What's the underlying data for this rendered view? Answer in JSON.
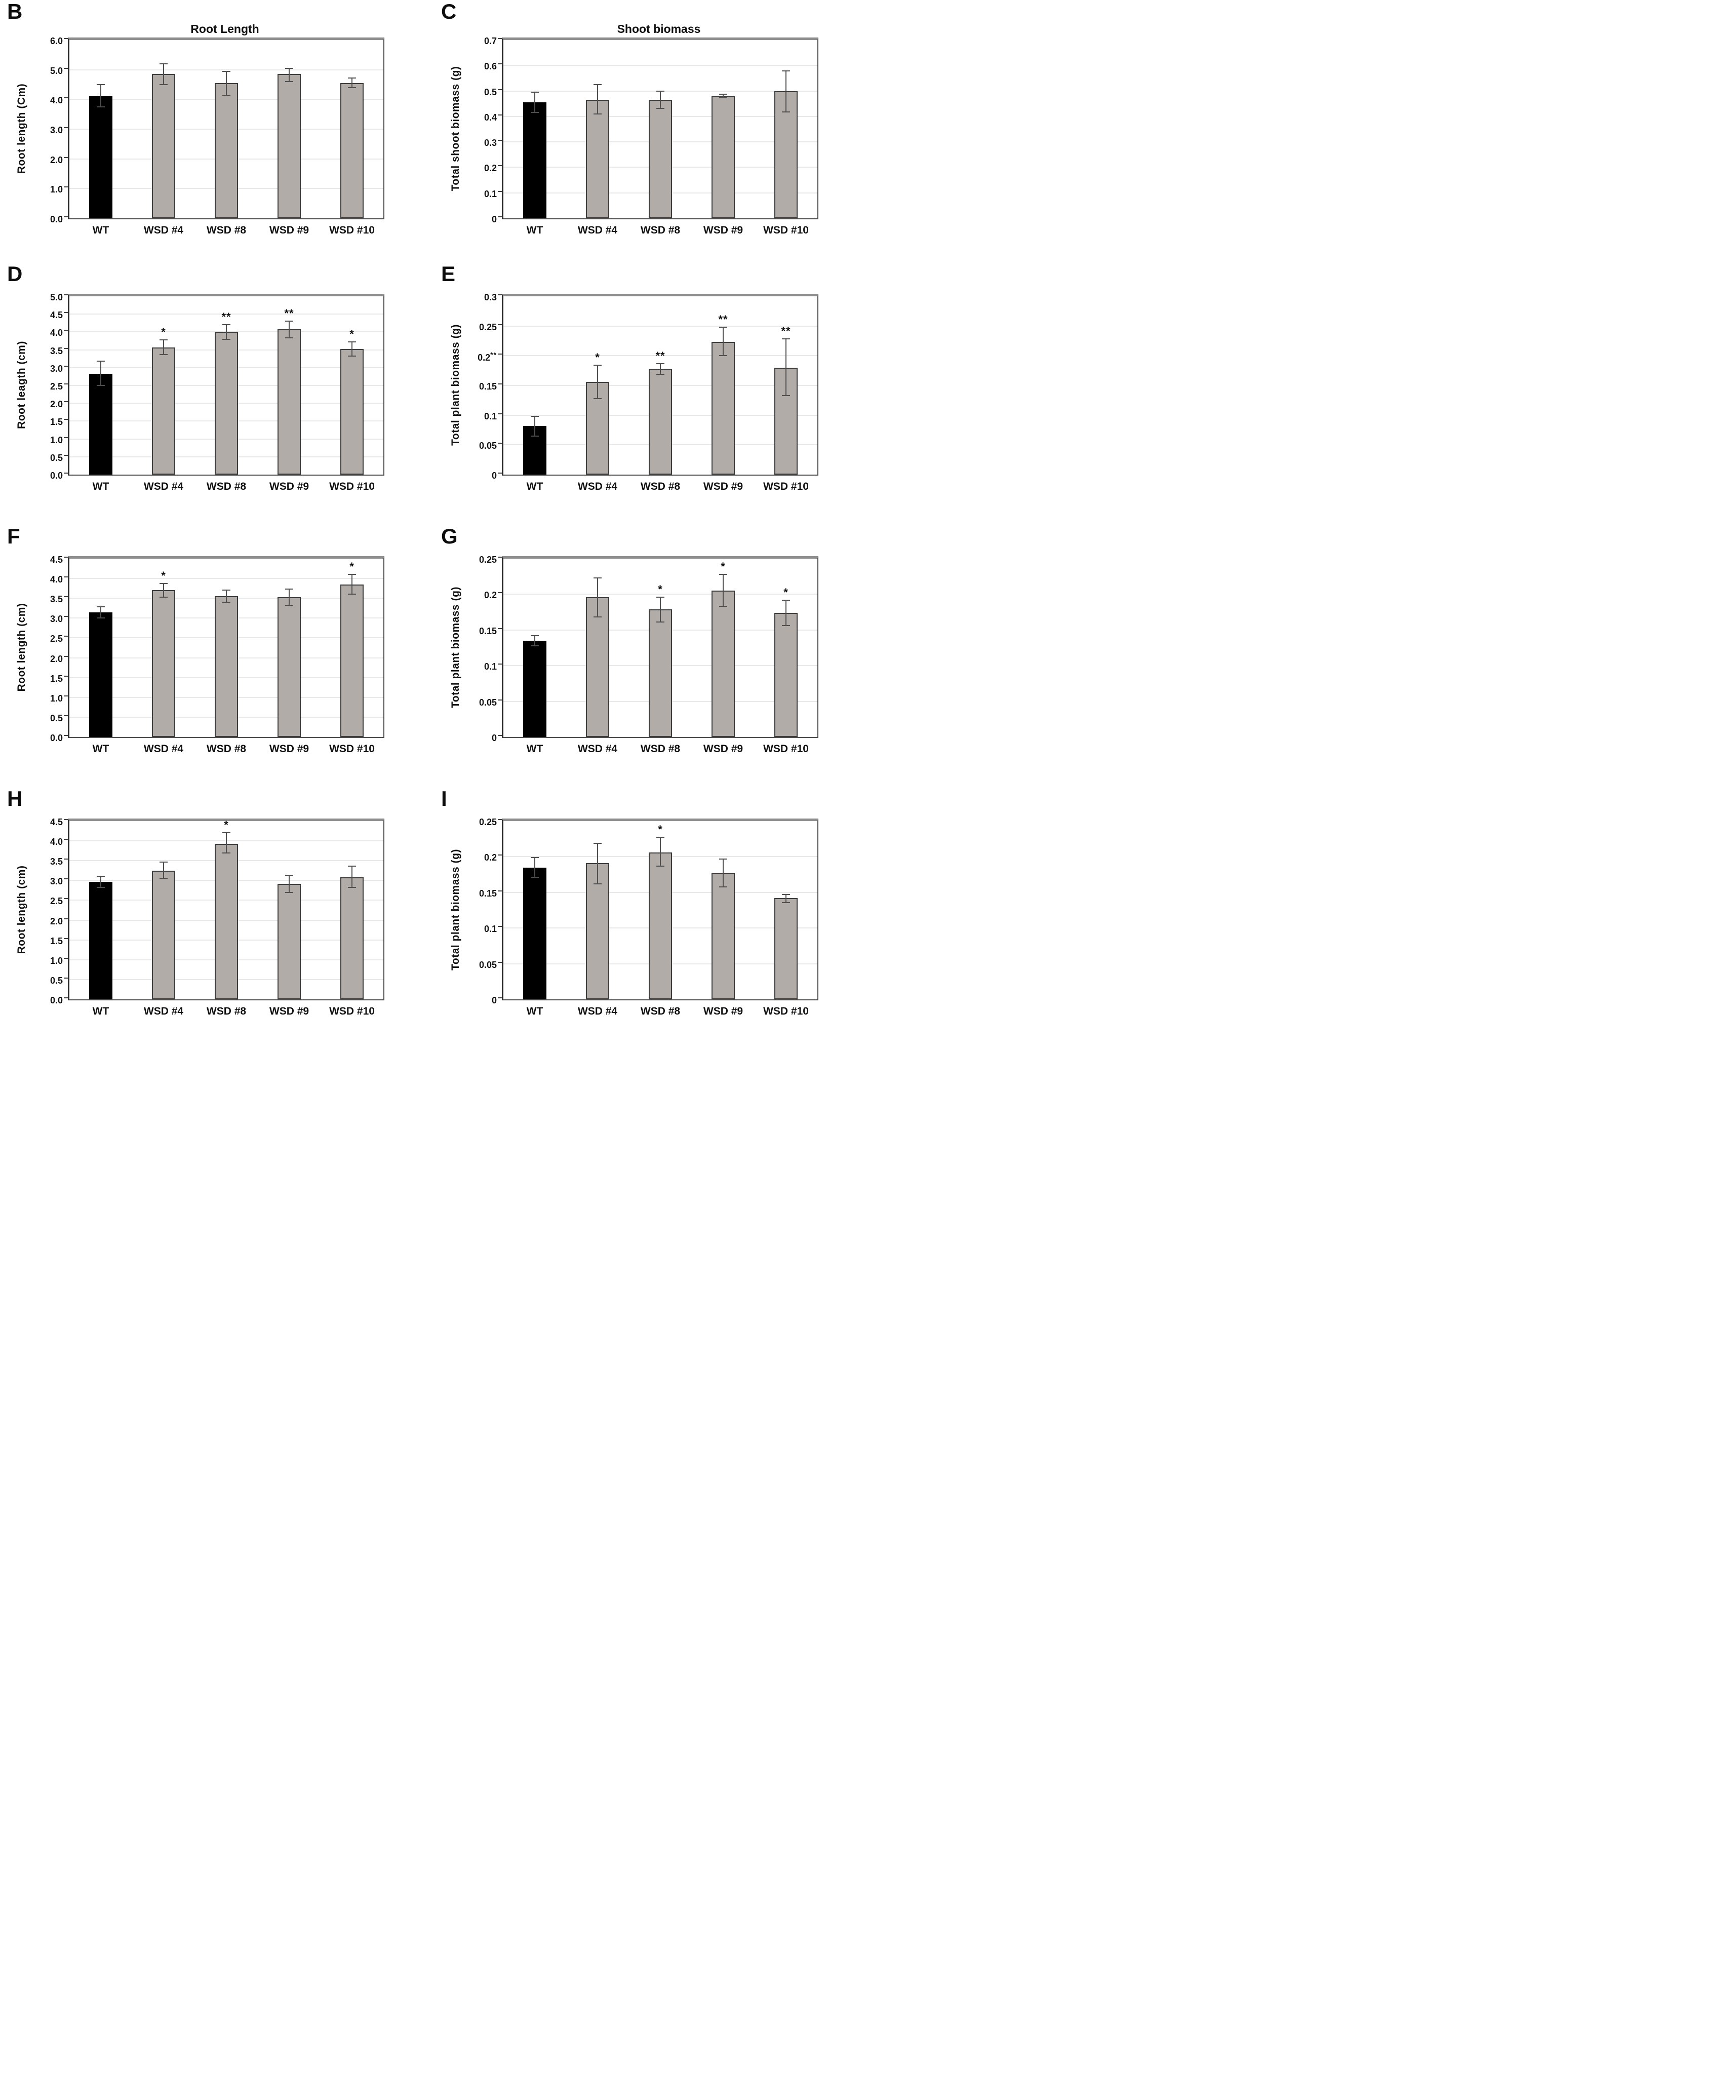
{
  "colors": {
    "wt_bar": "#000000",
    "wsd_bar": "#b2aca9",
    "bar_border": "#3c3c3c",
    "grid": "#e8e8e8",
    "error": "#4f4f4f",
    "text": "#111111"
  },
  "x_axis_categories": [
    "WT",
    "WSD #4",
    "WSD #8",
    "WSD #9",
    "WSD #10"
  ],
  "chart_data": [
    {
      "type": "bar",
      "panel": "B",
      "title": "Root Length",
      "ylabel": "Root length (Cm)",
      "ylim": [
        0,
        6
      ],
      "grid": true,
      "legend": "none",
      "yticks": [
        {
          "v": 0.0,
          "label": "0.0"
        },
        {
          "v": 1.0,
          "label": "1.0"
        },
        {
          "v": 2.0,
          "label": "2.0"
        },
        {
          "v": 3.0,
          "label": "3.0"
        },
        {
          "v": 4.0,
          "label": "4.0"
        },
        {
          "v": 5.0,
          "label": "5.0"
        },
        {
          "v": 6.0,
          "label": "6.0"
        }
      ],
      "categories": [
        "WT",
        "WSD #4",
        "WSD #8",
        "WSD #9",
        "WSD #10"
      ],
      "values": [
        4.1,
        4.85,
        4.55,
        4.85,
        4.55
      ],
      "error_low": [
        3.75,
        4.5,
        4.12,
        4.6,
        4.4
      ],
      "error_high": [
        4.5,
        5.2,
        4.95,
        5.05,
        4.72
      ],
      "significance": [
        "",
        "",
        "",
        "",
        ""
      ]
    },
    {
      "type": "bar",
      "panel": "C",
      "title": "Shoot biomass",
      "ylabel": "Total shoot biomass (g)",
      "ylim": [
        0,
        0.7
      ],
      "grid": true,
      "legend": "none",
      "yticks": [
        {
          "v": 0.0,
          "label": "0"
        },
        {
          "v": 0.1,
          "label": "0.1"
        },
        {
          "v": 0.2,
          "label": "0.2"
        },
        {
          "v": 0.3,
          "label": "0.3"
        },
        {
          "v": 0.4,
          "label": "0.4"
        },
        {
          "v": 0.5,
          "label": "0.5"
        },
        {
          "v": 0.6,
          "label": "0.6"
        },
        {
          "v": 0.7,
          "label": "0.7"
        }
      ],
      "categories": [
        "WT",
        "WSD #4",
        "WSD #8",
        "WSD #9",
        "WSD #10"
      ],
      "values": [
        0.455,
        0.465,
        0.465,
        0.48,
        0.5
      ],
      "error_low": [
        0.415,
        0.41,
        0.432,
        0.473,
        0.418
      ],
      "error_high": [
        0.495,
        0.525,
        0.5,
        0.487,
        0.578
      ],
      "significance": [
        "",
        "",
        "",
        "",
        ""
      ]
    },
    {
      "type": "bar",
      "panel": "D",
      "title": "",
      "ylabel": "Root leagth (cm)",
      "ylim": [
        0,
        5
      ],
      "grid": true,
      "legend": "none",
      "yticks": [
        {
          "v": 0.0,
          "label": "0.0"
        },
        {
          "v": 0.5,
          "label": "0.5"
        },
        {
          "v": 1.0,
          "label": "1.0"
        },
        {
          "v": 1.5,
          "label": "1.5"
        },
        {
          "v": 2.0,
          "label": "2.0"
        },
        {
          "v": 2.5,
          "label": "2.5"
        },
        {
          "v": 3.0,
          "label": "3.0"
        },
        {
          "v": 3.5,
          "label": "3.5"
        },
        {
          "v": 4.0,
          "label": "4.0"
        },
        {
          "v": 4.5,
          "label": "4.5"
        },
        {
          "v": 5.0,
          "label": "5.0"
        }
      ],
      "categories": [
        "WT",
        "WSD #4",
        "WSD #8",
        "WSD #9",
        "WSD #10"
      ],
      "values": [
        2.83,
        3.57,
        4.0,
        4.07,
        3.53
      ],
      "error_low": [
        2.5,
        3.37,
        3.79,
        3.84,
        3.32
      ],
      "error_high": [
        3.18,
        3.78,
        4.2,
        4.3,
        3.72
      ],
      "significance": [
        "",
        "*",
        "**",
        "**",
        "*"
      ]
    },
    {
      "type": "bar",
      "panel": "E",
      "title": "",
      "ylabel": "Total plant biomass (g)",
      "ylim": [
        0,
        0.3
      ],
      "grid": true,
      "legend": "none",
      "yticks": [
        {
          "v": 0.0,
          "label": "0"
        },
        {
          "v": 0.05,
          "label": "0.05"
        },
        {
          "v": 0.1,
          "label": "0.1"
        },
        {
          "v": 0.15,
          "label": "0.15"
        },
        {
          "v": 0.2,
          "label": "0.2**"
        },
        {
          "v": 0.25,
          "label": "0.25"
        },
        {
          "v": 0.3,
          "label": "0.3"
        }
      ],
      "categories": [
        "WT",
        "WSD #4",
        "WSD #8",
        "WSD #9",
        "WSD #10"
      ],
      "values": [
        0.082,
        0.156,
        0.178,
        0.223,
        0.18
      ],
      "error_low": [
        0.065,
        0.128,
        0.169,
        0.2,
        0.133
      ],
      "error_high": [
        0.098,
        0.184,
        0.187,
        0.248,
        0.228
      ],
      "significance": [
        "",
        "*",
        "**",
        "**",
        "**"
      ]
    },
    {
      "type": "bar",
      "panel": "F",
      "title": "",
      "ylabel": "Root length (cm)",
      "ylim": [
        0,
        4.5
      ],
      "grid": true,
      "legend": "none",
      "yticks": [
        {
          "v": 0.0,
          "label": "0.0"
        },
        {
          "v": 0.5,
          "label": "0.5"
        },
        {
          "v": 1.0,
          "label": "1.0"
        },
        {
          "v": 1.5,
          "label": "1.5"
        },
        {
          "v": 2.0,
          "label": "2.0"
        },
        {
          "v": 2.5,
          "label": "2.5"
        },
        {
          "v": 3.0,
          "label": "3.0"
        },
        {
          "v": 3.5,
          "label": "3.5"
        },
        {
          "v": 4.0,
          "label": "4.0"
        },
        {
          "v": 4.5,
          "label": "4.5"
        }
      ],
      "categories": [
        "WT",
        "WSD #4",
        "WSD #8",
        "WSD #9",
        "WSD #10"
      ],
      "values": [
        3.15,
        3.71,
        3.55,
        3.53,
        3.85
      ],
      "error_low": [
        3.0,
        3.53,
        3.4,
        3.33,
        3.6
      ],
      "error_high": [
        3.29,
        3.88,
        3.71,
        3.73,
        4.1
      ],
      "significance": [
        "",
        "*",
        "",
        "",
        "*"
      ]
    },
    {
      "type": "bar",
      "panel": "G",
      "title": "",
      "ylabel": "Total plant biomass (g)",
      "ylim": [
        0,
        0.25
      ],
      "grid": true,
      "legend": "none",
      "yticks": [
        {
          "v": 0.0,
          "label": "0"
        },
        {
          "v": 0.05,
          "label": "0.05"
        },
        {
          "v": 0.1,
          "label": "0.1"
        },
        {
          "v": 0.15,
          "label": "0.15"
        },
        {
          "v": 0.2,
          "label": "0.2"
        },
        {
          "v": 0.25,
          "label": "0.25"
        }
      ],
      "categories": [
        "WT",
        "WSD #4",
        "WSD #8",
        "WSD #9",
        "WSD #10"
      ],
      "values": [
        0.135,
        0.196,
        0.179,
        0.205,
        0.174
      ],
      "error_low": [
        0.128,
        0.168,
        0.161,
        0.183,
        0.156
      ],
      "error_high": [
        0.142,
        0.223,
        0.196,
        0.228,
        0.192
      ],
      "significance": [
        "",
        "",
        "*",
        "*",
        "*"
      ]
    },
    {
      "type": "bar",
      "panel": "H",
      "title": "",
      "ylabel": "Root length (cm)",
      "ylim": [
        0,
        4.5
      ],
      "grid": true,
      "legend": "none",
      "yticks": [
        {
          "v": 0.0,
          "label": "0.0"
        },
        {
          "v": 0.5,
          "label": "0.5"
        },
        {
          "v": 1.0,
          "label": "1.0"
        },
        {
          "v": 1.5,
          "label": "1.5"
        },
        {
          "v": 2.0,
          "label": "2.0"
        },
        {
          "v": 2.5,
          "label": "2.5"
        },
        {
          "v": 3.0,
          "label": "3.0"
        },
        {
          "v": 3.5,
          "label": "3.5"
        },
        {
          "v": 4.0,
          "label": "4.0"
        },
        {
          "v": 4.5,
          "label": "4.5"
        }
      ],
      "categories": [
        "WT",
        "WSD #4",
        "WSD #8",
        "WSD #9",
        "WSD #10"
      ],
      "values": [
        2.97,
        3.25,
        3.93,
        2.92,
        3.08
      ],
      "error_low": [
        2.83,
        3.05,
        3.7,
        2.7,
        2.82
      ],
      "error_high": [
        3.11,
        3.46,
        4.2,
        3.13,
        3.36
      ],
      "significance": [
        "",
        "",
        "*",
        "",
        ""
      ]
    },
    {
      "type": "bar",
      "panel": "I",
      "title": "",
      "ylabel": "Total plant biomass (g)",
      "ylim": [
        0,
        0.25
      ],
      "grid": true,
      "legend": "none",
      "yticks": [
        {
          "v": 0.0,
          "label": "0"
        },
        {
          "v": 0.05,
          "label": "0.05"
        },
        {
          "v": 0.1,
          "label": "0.1"
        },
        {
          "v": 0.15,
          "label": "0.15"
        },
        {
          "v": 0.2,
          "label": "0.2"
        },
        {
          "v": 0.25,
          "label": "0.25"
        }
      ],
      "categories": [
        "WT",
        "WSD #4",
        "WSD #8",
        "WSD #9",
        "WSD #10"
      ],
      "values": [
        0.185,
        0.191,
        0.206,
        0.177,
        0.142
      ],
      "error_low": [
        0.171,
        0.162,
        0.187,
        0.158,
        0.136
      ],
      "error_high": [
        0.199,
        0.219,
        0.227,
        0.197,
        0.147
      ],
      "significance": [
        "",
        "",
        "*",
        "",
        ""
      ]
    }
  ]
}
